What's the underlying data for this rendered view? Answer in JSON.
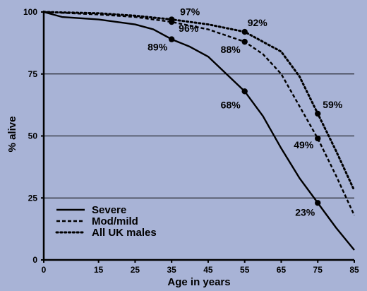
{
  "chart_data": {
    "type": "line",
    "xlabel": "Age in years",
    "ylabel": "% alive",
    "xlim": [
      0,
      85
    ],
    "ylim": [
      0,
      100
    ],
    "x_ticks": [
      0,
      15,
      25,
      35,
      45,
      55,
      65,
      75,
      85
    ],
    "y_ticks": [
      0,
      25,
      50,
      75,
      100
    ],
    "gridlines_y": [
      25,
      50,
      75
    ],
    "legend_position": "bottom-left",
    "background_color": "#a8b3d6",
    "line_color": "#000000",
    "series": [
      {
        "name": "Severe",
        "style": "solid",
        "x": [
          0,
          5,
          15,
          20,
          25,
          30,
          35,
          40,
          45,
          50,
          55,
          60,
          65,
          70,
          75,
          80,
          85
        ],
        "values": [
          100,
          98,
          97,
          96,
          95,
          93,
          89,
          86,
          82,
          75,
          68,
          58,
          45,
          33,
          23,
          13,
          4
        ]
      },
      {
        "name": "Mod/mild",
        "style": "dashed",
        "x": [
          0,
          15,
          25,
          35,
          45,
          55,
          60,
          65,
          70,
          75,
          80,
          85
        ],
        "values": [
          100,
          99,
          98,
          96,
          93,
          88,
          83,
          75,
          62,
          49,
          34,
          18
        ]
      },
      {
        "name": "All UK males",
        "style": "dotted",
        "x": [
          0,
          15,
          25,
          35,
          45,
          55,
          65,
          70,
          75,
          80,
          85
        ],
        "values": [
          100,
          99.5,
          98.5,
          97,
          95,
          92,
          84,
          74,
          59,
          44,
          28
        ]
      }
    ],
    "markers": [
      {
        "x": 35,
        "y": 97,
        "label": "97%"
      },
      {
        "x": 35,
        "y": 96,
        "label": "96%"
      },
      {
        "x": 35,
        "y": 89,
        "label": "89%"
      },
      {
        "x": 55,
        "y": 92,
        "label": "92%"
      },
      {
        "x": 55,
        "y": 88,
        "label": "88%"
      },
      {
        "x": 55,
        "y": 68,
        "label": "68%"
      },
      {
        "x": 75,
        "y": 59,
        "label": "59%"
      },
      {
        "x": 75,
        "y": 49,
        "label": "49%"
      },
      {
        "x": 75,
        "y": 23,
        "label": "23%"
      }
    ]
  }
}
